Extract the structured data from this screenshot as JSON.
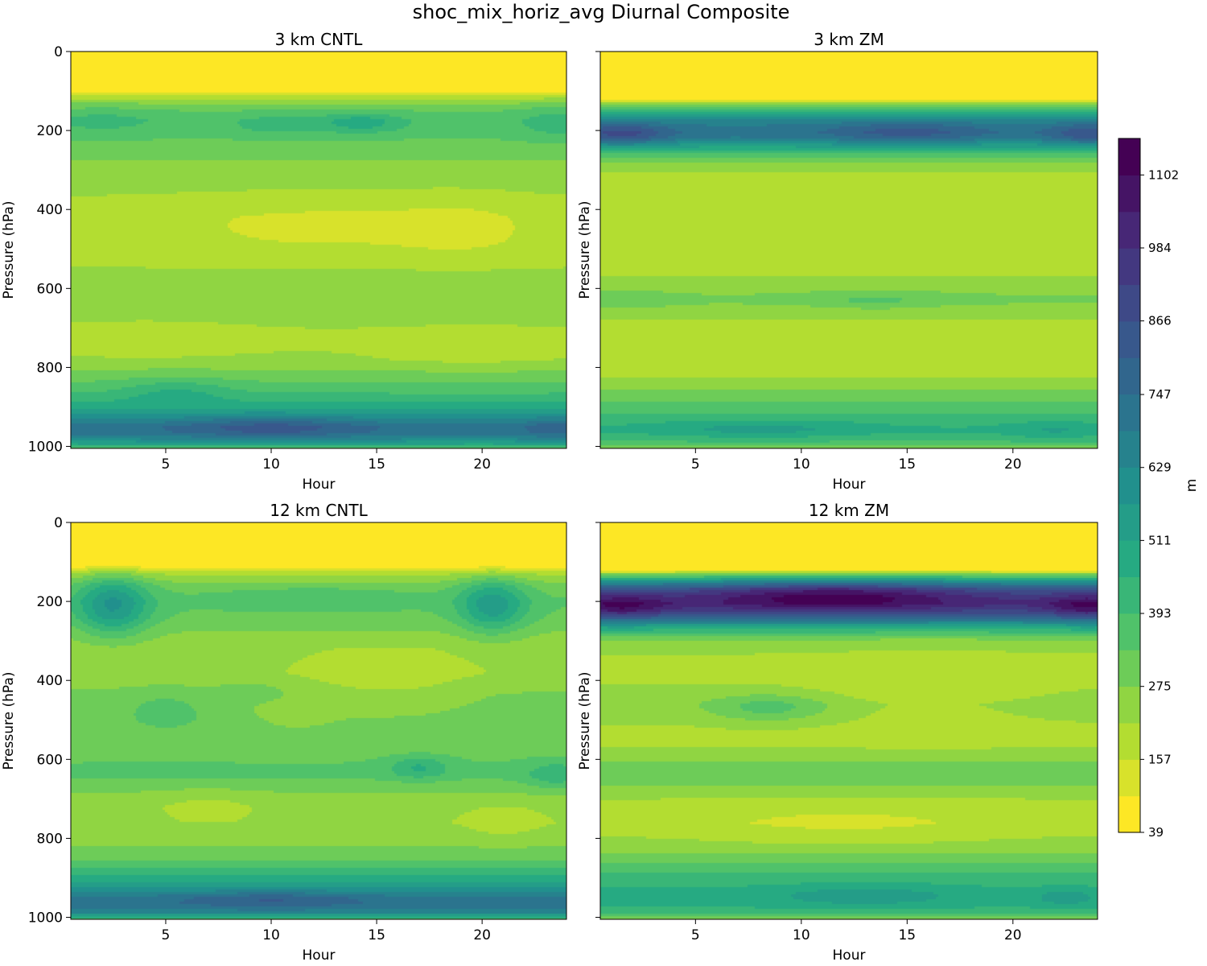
{
  "figure_title": "shoc_mix_horiz_avg Diurnal Composite",
  "chart_data": [
    {
      "type": "heatmap",
      "title": "3 km CNTL",
      "xlabel": "Hour",
      "ylabel": "Pressure (hPa)",
      "xlim": [
        0.5,
        24.0
      ],
      "ylim": [
        1005,
        0
      ],
      "xticks": [
        5,
        10,
        15,
        20
      ],
      "yticks": [
        0,
        200,
        400,
        600,
        800,
        1000
      ],
      "profile": {
        "p": [
          0,
          100,
          110,
          130,
          150,
          175,
          200,
          225,
          250,
          280,
          320,
          360,
          420,
          480,
          540,
          580,
          620,
          660,
          700,
          740,
          780,
          820,
          860,
          900,
          930,
          950,
          965,
          980,
          995,
          1005
        ],
        "v": [
          40,
          45,
          150,
          260,
          330,
          370,
          360,
          330,
          300,
          270,
          240,
          220,
          190,
          190,
          210,
          250,
          270,
          260,
          220,
          210,
          230,
          300,
          380,
          480,
          620,
          720,
          720,
          640,
          500,
          300
        ]
      },
      "anomalies": [
        {
          "x": 14.3,
          "p": 180,
          "sx": 1.3,
          "sp": 18,
          "a": 120
        },
        {
          "x": 10.5,
          "p": 185,
          "sx": 1.5,
          "sp": 18,
          "a": 70
        },
        {
          "x": 2.0,
          "p": 170,
          "sx": 1.8,
          "sp": 25,
          "a": 50
        },
        {
          "x": 23.5,
          "p": 175,
          "sx": 1.2,
          "sp": 35,
          "a": 60
        },
        {
          "x": 12.5,
          "p": 440,
          "sx": 5.0,
          "sp": 50,
          "a": -50
        },
        {
          "x": 19.0,
          "p": 450,
          "sx": 2.2,
          "sp": 55,
          "a": -45
        },
        {
          "x": 4.0,
          "p": 720,
          "sx": 3.5,
          "sp": 35,
          "a": -40
        },
        {
          "x": 19.5,
          "p": 750,
          "sx": 3.0,
          "sp": 35,
          "a": -45
        },
        {
          "x": 10.0,
          "p": 950,
          "sx": 3.0,
          "sp": 20,
          "a": 120
        },
        {
          "x": 5.5,
          "p": 860,
          "sx": 1.8,
          "sp": 25,
          "a": 80
        },
        {
          "x": 23.5,
          "p": 950,
          "sx": 1.0,
          "sp": 20,
          "a": 80
        }
      ]
    },
    {
      "type": "heatmap",
      "title": "3 km ZM",
      "xlabel": "Hour",
      "ylabel": "Pressure (hPa)",
      "xlim": [
        0.5,
        24.0
      ],
      "ylim": [
        1005,
        0
      ],
      "xticks": [
        5,
        10,
        15,
        20
      ],
      "yticks": [
        0,
        200,
        400,
        600,
        800,
        1000
      ],
      "profile": {
        "p": [
          0,
          120,
          130,
          150,
          170,
          190,
          205,
          220,
          240,
          260,
          280,
          300,
          340,
          400,
          480,
          560,
          600,
          630,
          660,
          700,
          760,
          820,
          860,
          900,
          940,
          960,
          980,
          995,
          1005
        ],
        "v": [
          40,
          45,
          200,
          450,
          620,
          700,
          720,
          680,
          520,
          380,
          270,
          220,
          190,
          170,
          160,
          200,
          260,
          290,
          240,
          190,
          180,
          210,
          280,
          360,
          440,
          460,
          420,
          360,
          250
        ]
      },
      "anomalies": [
        {
          "x": 1.5,
          "p": 210,
          "sx": 1.5,
          "sp": 20,
          "a": 180
        },
        {
          "x": 15.0,
          "p": 205,
          "sx": 2.5,
          "sp": 20,
          "a": 120
        },
        {
          "x": 23.5,
          "p": 210,
          "sx": 1.3,
          "sp": 20,
          "a": 140
        },
        {
          "x": 13.5,
          "p": 630,
          "sx": 2.0,
          "sp": 15,
          "a": 60
        },
        {
          "x": 2.0,
          "p": 630,
          "sx": 1.2,
          "sp": 15,
          "a": 40
        },
        {
          "x": 8.0,
          "p": 955,
          "sx": 3.0,
          "sp": 15,
          "a": 80
        },
        {
          "x": 22.0,
          "p": 960,
          "sx": 1.5,
          "sp": 15,
          "a": 60
        }
      ]
    },
    {
      "type": "heatmap",
      "title": "12 km CNTL",
      "xlabel": "Hour",
      "ylabel": "Pressure (hPa)",
      "xlim": [
        0.5,
        24.0
      ],
      "ylim": [
        1005,
        0
      ],
      "xticks": [
        5,
        10,
        15,
        20
      ],
      "yticks": [
        0,
        200,
        400,
        600,
        800,
        1000
      ],
      "profile": {
        "p": [
          0,
          110,
          130,
          160,
          200,
          240,
          280,
          320,
          380,
          440,
          500,
          560,
          600,
          640,
          680,
          720,
          760,
          800,
          840,
          880,
          920,
          950,
          965,
          985,
          1000,
          1005
        ],
        "v": [
          40,
          45,
          200,
          300,
          340,
          320,
          270,
          230,
          230,
          290,
          300,
          290,
          330,
          350,
          280,
          230,
          220,
          250,
          300,
          400,
          540,
          700,
          720,
          660,
          500,
          300
        ]
      },
      "anomalies": [
        {
          "x": 2.5,
          "p": 210,
          "sx": 1.2,
          "sp": 55,
          "a": 250
        },
        {
          "x": 20.5,
          "p": 210,
          "sx": 1.1,
          "sp": 50,
          "a": 220
        },
        {
          "x": 12.0,
          "p": 190,
          "sx": 3.5,
          "sp": 20,
          "a": 50
        },
        {
          "x": 17.0,
          "p": 620,
          "sx": 1.0,
          "sp": 20,
          "a": 120
        },
        {
          "x": 23.5,
          "p": 640,
          "sx": 1.0,
          "sp": 25,
          "a": 100
        },
        {
          "x": 9.0,
          "p": 430,
          "sx": 1.0,
          "sp": 15,
          "a": 60
        },
        {
          "x": 5.0,
          "p": 480,
          "sx": 1.5,
          "sp": 40,
          "a": 60
        },
        {
          "x": 15.5,
          "p": 410,
          "sx": 3.0,
          "sp": 60,
          "a": -60
        },
        {
          "x": 11.0,
          "p": 480,
          "sx": 1.5,
          "sp": 30,
          "a": -40
        },
        {
          "x": 7.0,
          "p": 710,
          "sx": 1.5,
          "sp": 25,
          "a": -40
        },
        {
          "x": 21.0,
          "p": 760,
          "sx": 1.2,
          "sp": 30,
          "a": -40
        },
        {
          "x": 10.0,
          "p": 955,
          "sx": 3.0,
          "sp": 15,
          "a": 100
        }
      ]
    },
    {
      "type": "heatmap",
      "title": "12 km ZM",
      "xlabel": "Hour",
      "ylabel": "Pressure (hPa)",
      "xlim": [
        0.5,
        24.0
      ],
      "ylim": [
        1005,
        0
      ],
      "xticks": [
        5,
        10,
        15,
        20
      ],
      "yticks": [
        0,
        200,
        400,
        600,
        800,
        1000
      ],
      "profile": {
        "p": [
          0,
          120,
          130,
          150,
          170,
          190,
          205,
          220,
          240,
          260,
          280,
          300,
          340,
          400,
          460,
          520,
          560,
          600,
          630,
          660,
          700,
          760,
          820,
          860,
          900,
          940,
          960,
          980,
          995,
          1005
        ],
        "v": [
          40,
          45,
          250,
          600,
          850,
          950,
          980,
          930,
          780,
          560,
          380,
          260,
          210,
          210,
          250,
          210,
          200,
          260,
          320,
          290,
          220,
          190,
          240,
          330,
          420,
          470,
          470,
          440,
          380,
          250
        ]
      },
      "anomalies": [
        {
          "x": 11.5,
          "p": 185,
          "sx": 4.0,
          "sp": 25,
          "a": 200
        },
        {
          "x": 1.5,
          "p": 215,
          "sx": 1.5,
          "sp": 20,
          "a": 160
        },
        {
          "x": 23.5,
          "p": 215,
          "sx": 1.3,
          "sp": 20,
          "a": 160
        },
        {
          "x": 8.5,
          "p": 470,
          "sx": 2.0,
          "sp": 25,
          "a": 120
        },
        {
          "x": 16.0,
          "p": 420,
          "sx": 4.0,
          "sp": 60,
          "a": -50
        },
        {
          "x": 12.0,
          "p": 760,
          "sx": 5.0,
          "sp": 40,
          "a": -50
        },
        {
          "x": 13.0,
          "p": 945,
          "sx": 3.0,
          "sp": 20,
          "a": 80
        },
        {
          "x": 22.5,
          "p": 950,
          "sx": 1.0,
          "sp": 15,
          "a": 80
        }
      ]
    }
  ],
  "colorbar": {
    "label": "m",
    "vmin": 39,
    "vmax": 1161,
    "levels": 19,
    "ticks": [
      39,
      157,
      275,
      393,
      511,
      629,
      747,
      866,
      984,
      1102
    ],
    "colormap": "viridis_r"
  }
}
